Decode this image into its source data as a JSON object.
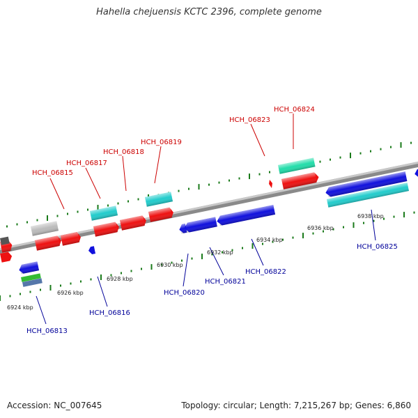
{
  "title": "Hahella chejuensis KCTC 2396, complete genome",
  "footer": {
    "accession": "Accession: NC_007645",
    "summary": "Topology: circular; Length: 7,215,267 bp; Genes: 6,860"
  },
  "colors": {
    "backbone": "#8a8a8a",
    "tick": "#1a7a1a",
    "forward_label": "#cc0000",
    "reverse_label": "#000099",
    "red": "#ee1111",
    "blue": "#1111dd",
    "cyan": "#22cccc",
    "teal": "#22ddaa",
    "gray": "#bbbbbb",
    "green": "#33bb33",
    "steel": "#5577aa"
  },
  "forward_labels": [
    "HCH_06815",
    "HCH_06817",
    "HCH_06818",
    "HCH_06819",
    "HCH_06823",
    "HCH_06824"
  ],
  "reverse_labels": [
    "HCH_06813",
    "HCH_06816",
    "HCH_06820",
    "HCH_06821",
    "HCH_06822",
    "HCH_06825"
  ],
  "kbp_labels": [
    "6924 kbp",
    "6926 kbp",
    "6928 kbp",
    "6930 kbp",
    "6932 kbp",
    "6934 kbp",
    "6936 kbp",
    "6938 kbp"
  ]
}
